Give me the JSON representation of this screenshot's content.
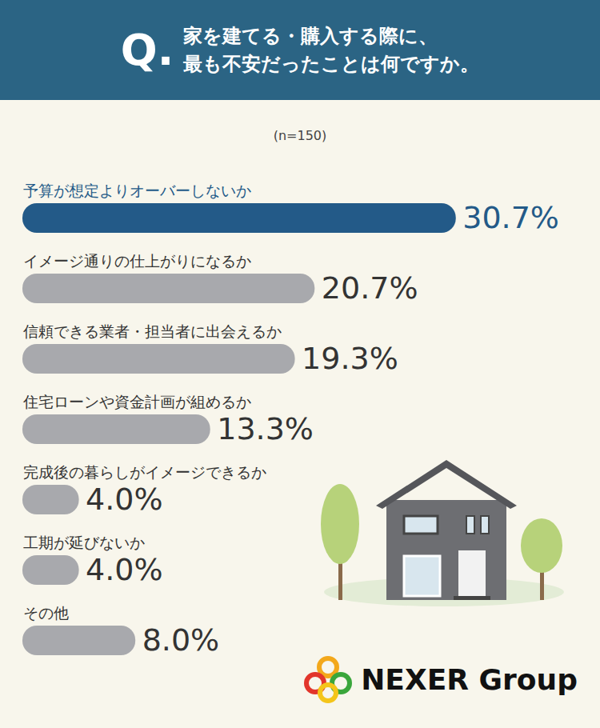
{
  "chart_data": {
    "type": "bar",
    "title": "家を建てる・購入する際に、\n最も不安だったことは何ですか。",
    "subtitle": "(n=150)",
    "annotations": [
      "Q.",
      "NEXER Group"
    ],
    "orientation": "horizontal",
    "categories": [
      "予算が想定よりオーバーしないか",
      "イメージ通りの仕上がりになるか",
      "信頼できる業者・担当者に出会えるか",
      "住宅ローンや資金計画が組めるか",
      "完成後の暮らしがイメージできるか",
      "工期が延びないか",
      "その他"
    ],
    "values": [
      30.7,
      20.7,
      19.3,
      13.3,
      4.0,
      4.0,
      8.0
    ],
    "value_labels": [
      "30.7%",
      "20.7%",
      "19.3%",
      "13.3%",
      "4.0%",
      "4.0%",
      "8.0%"
    ],
    "colors": [
      "#235a88",
      "#a8a9ad",
      "#a8a9ad",
      "#a8a9ad",
      "#a8a9ad",
      "#a8a9ad",
      "#a8a9ad"
    ],
    "xlim": [
      0,
      34
    ],
    "data_labels": true,
    "tick_labels": false,
    "grid": false
  }
}
